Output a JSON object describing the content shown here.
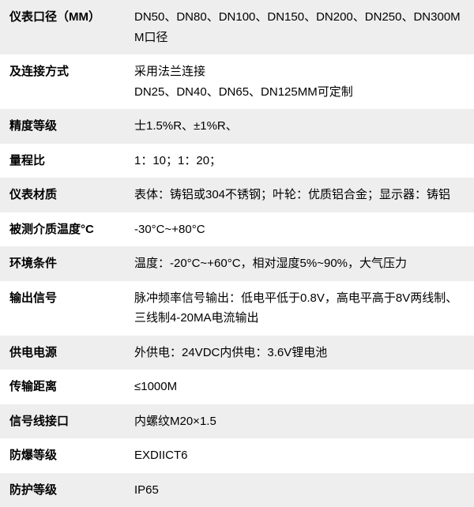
{
  "table": {
    "rows": [
      {
        "label": "仪表口径（MM）",
        "value": "DN50、DN80、DN100、DN150、DN200、DN250、DN300MM口径",
        "striped": true
      },
      {
        "label": "及连接方式",
        "value": "采用法兰连接\nDN25、DN40、DN65、DN125MM可定制",
        "striped": false
      },
      {
        "label": "精度等级",
        "value": "士1.5%R、±1%R、",
        "striped": true
      },
      {
        "label": "量程比",
        "value": "1：10；1：20；",
        "striped": false
      },
      {
        "label": "仪表材质",
        "value": "表体：铸铝或304不锈钢；叶轮：优质铝合金；显示器：铸铝",
        "striped": true
      },
      {
        "label": "被测介质温度°C",
        "value": "-30°C~+80°C",
        "striped": false
      },
      {
        "label": "环境条件",
        "value": "温度：-20°C~+60°C，相对湿度5%~90%，大气压力",
        "striped": true
      },
      {
        "label": "输出信号",
        "value": "脉冲频率信号输出：低电平低于0.8V，高电平高于8V两线制、三线制4-20MA电流输出",
        "striped": false
      },
      {
        "label": "供电电源",
        "value": "外供电：24VDC内供电：3.6V锂电池",
        "striped": true
      },
      {
        "label": "传输距离",
        "value": "≤1000M",
        "striped": false
      },
      {
        "label": "信号线接口",
        "value": "内螺纹M20×1.5",
        "striped": true
      },
      {
        "label": "防爆等级",
        "value": "EXDIICT6",
        "striped": false
      },
      {
        "label": "防护等级",
        "value": "IP65",
        "striped": true
      }
    ],
    "colors": {
      "striped_bg": "#eeeeee",
      "plain_bg": "#ffffff",
      "text": "#000000"
    }
  }
}
